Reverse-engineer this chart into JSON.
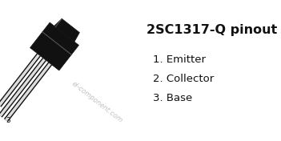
{
  "title": "2SC1317-Q pinout",
  "title_fontsize": 11.5,
  "title_fontweight": "bold",
  "pins": [
    {
      "num": "1.",
      "label": "Emitter"
    },
    {
      "num": "2.",
      "label": "Collector"
    },
    {
      "num": "3.",
      "label": "Base"
    }
  ],
  "pin_fontsize": 9.5,
  "watermark": "el-component.com",
  "watermark_fontsize": 6,
  "background_color": "#ffffff",
  "transistor_body_color": "#111111",
  "seam_color": "#555555",
  "lead_color_dark": "#111111",
  "lead_color_light": "#dddddd",
  "text_color": "#111111",
  "watermark_color": "#bbbbbb",
  "fig_width": 3.51,
  "fig_height": 1.76,
  "dpi": 100
}
